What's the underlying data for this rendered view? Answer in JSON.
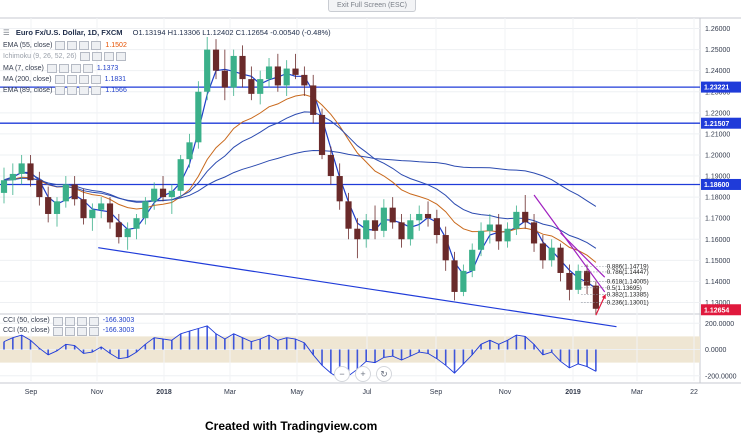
{
  "header": {
    "symbol": "Euro Fx/U.S. Dollar, 1D, FXCM",
    "ohlc": "O1.13194 H1.13306 L1.12402 C1.12654 -0.00540 (-0.48%)"
  },
  "exit_button": "Exit Full Screen (ESC)",
  "indicators": [
    {
      "name": "EMA (55, close)",
      "value": "1.1502",
      "color": "#e65100"
    },
    {
      "name": "Ichimoku (9, 26, 52, 26)",
      "value": "",
      "color": "#a0a0a0"
    },
    {
      "name": "MA (7, close)",
      "value": "1.1373",
      "color": "#1e3ec8"
    },
    {
      "name": "MA (200, close)",
      "value": "1.1831",
      "color": "#1e3ec8"
    },
    {
      "name": "EMA (89, close)",
      "value": "1.1566",
      "color": "#1e3ec8"
    }
  ],
  "cci_legend": [
    {
      "name": "CCI (50, close)",
      "value": "-166.3003"
    },
    {
      "name": "CCI (50, close)",
      "value": "-166.3003"
    }
  ],
  "zoom": {
    "minus": "−",
    "plus": "+",
    "reset": "↻"
  },
  "footer": "Created with Tradingview.com",
  "colors": {
    "bull": "#3bb08a",
    "bear": "#6a2a2a",
    "hline": "#1f3bd9",
    "channel": "#1f3bd9",
    "trend": "#a020c0",
    "arrow": "#e0193d",
    "price_badge": "#e0193d",
    "cci_line": "#1f3bd9",
    "cci_band": "#efe6d3"
  },
  "chart_data": {
    "type": "candlestick",
    "x_ticks": [
      "Sep",
      "Nov",
      "2018",
      "Mar",
      "May",
      "Jul",
      "Sep",
      "Nov",
      "2019",
      "Mar",
      "22"
    ],
    "y_ticks": [
      "1.26000",
      "1.25000",
      "1.24000",
      "1.23000",
      "1.22000",
      "1.21000",
      "1.20000",
      "1.19000",
      "1.18000",
      "1.17000",
      "1.16000",
      "1.15000",
      "1.14000",
      "1.13000"
    ],
    "ylim": [
      1.125,
      1.265
    ],
    "horizontal_levels": [
      {
        "label": "1.23221",
        "value": 1.23221
      },
      {
        "label": "1.21507",
        "value": 1.21507
      },
      {
        "label": "1.18600",
        "value": 1.186
      }
    ],
    "last_price": {
      "label": "1.12654",
      "value": 1.12654
    },
    "fibonacci": [
      {
        "label": "0.886(1.14719)",
        "value": 1.14719
      },
      {
        "label": "0.786(1.14447)",
        "value": 1.14447
      },
      {
        "label": "0.618(1.14005)",
        "value": 1.14005
      },
      {
        "label": "0.5(1.13695)",
        "value": 1.13695
      },
      {
        "label": "0.382(1.13385)",
        "value": 1.13385
      },
      {
        "label": "0.236(1.13001)",
        "value": 1.13001
      }
    ],
    "cci_ticks": [
      "200.0000",
      "0.0000",
      "-200.0000"
    ],
    "cci_ylim": [
      -240,
      240
    ],
    "ohlc_series": [
      [
        0,
        1.182,
        1.194,
        1.177,
        1.188
      ],
      [
        3,
        1.188,
        1.196,
        1.181,
        1.191
      ],
      [
        6,
        1.191,
        1.2,
        1.186,
        1.196
      ],
      [
        9,
        1.196,
        1.2,
        1.185,
        1.188
      ],
      [
        12,
        1.188,
        1.192,
        1.176,
        1.18
      ],
      [
        15,
        1.18,
        1.185,
        1.168,
        1.172
      ],
      [
        18,
        1.172,
        1.18,
        1.166,
        1.178
      ],
      [
        21,
        1.178,
        1.19,
        1.175,
        1.186
      ],
      [
        24,
        1.186,
        1.19,
        1.176,
        1.179
      ],
      [
        27,
        1.179,
        1.184,
        1.167,
        1.17
      ],
      [
        30,
        1.17,
        1.177,
        1.164,
        1.174
      ],
      [
        33,
        1.174,
        1.18,
        1.17,
        1.177
      ],
      [
        36,
        1.177,
        1.18,
        1.165,
        1.168
      ],
      [
        39,
        1.168,
        1.172,
        1.158,
        1.161
      ],
      [
        42,
        1.161,
        1.168,
        1.155,
        1.165
      ],
      [
        45,
        1.165,
        1.172,
        1.16,
        1.17
      ],
      [
        48,
        1.17,
        1.18,
        1.167,
        1.178
      ],
      [
        51,
        1.178,
        1.187,
        1.174,
        1.184
      ],
      [
        54,
        1.184,
        1.19,
        1.178,
        1.18
      ],
      [
        57,
        1.18,
        1.186,
        1.172,
        1.183
      ],
      [
        60,
        1.183,
        1.2,
        1.18,
        1.198
      ],
      [
        63,
        1.198,
        1.21,
        1.194,
        1.206
      ],
      [
        66,
        1.206,
        1.235,
        1.203,
        1.23
      ],
      [
        69,
        1.23,
        1.256,
        1.226,
        1.25
      ],
      [
        72,
        1.25,
        1.255,
        1.236,
        1.24
      ],
      [
        75,
        1.24,
        1.25,
        1.226,
        1.232
      ],
      [
        78,
        1.232,
        1.25,
        1.228,
        1.247
      ],
      [
        81,
        1.247,
        1.252,
        1.232,
        1.236
      ],
      [
        84,
        1.236,
        1.242,
        1.226,
        1.229
      ],
      [
        87,
        1.229,
        1.24,
        1.224,
        1.236
      ],
      [
        90,
        1.236,
        1.246,
        1.232,
        1.242
      ],
      [
        93,
        1.242,
        1.248,
        1.23,
        1.233
      ],
      [
        96,
        1.233,
        1.245,
        1.228,
        1.241
      ],
      [
        99,
        1.241,
        1.248,
        1.236,
        1.238
      ],
      [
        102,
        1.238,
        1.242,
        1.228,
        1.233
      ],
      [
        105,
        1.233,
        1.238,
        1.215,
        1.219
      ],
      [
        108,
        1.219,
        1.222,
        1.198,
        1.2
      ],
      [
        111,
        1.2,
        1.204,
        1.186,
        1.19
      ],
      [
        114,
        1.19,
        1.196,
        1.174,
        1.178
      ],
      [
        117,
        1.178,
        1.182,
        1.16,
        1.165
      ],
      [
        120,
        1.165,
        1.17,
        1.151,
        1.16
      ],
      [
        123,
        1.16,
        1.172,
        1.156,
        1.169
      ],
      [
        126,
        1.169,
        1.176,
        1.16,
        1.164
      ],
      [
        129,
        1.164,
        1.179,
        1.161,
        1.175
      ],
      [
        132,
        1.175,
        1.18,
        1.165,
        1.168
      ],
      [
        135,
        1.168,
        1.172,
        1.156,
        1.16
      ],
      [
        138,
        1.16,
        1.172,
        1.157,
        1.169
      ],
      [
        141,
        1.169,
        1.176,
        1.164,
        1.172
      ],
      [
        144,
        1.172,
        1.178,
        1.166,
        1.17
      ],
      [
        147,
        1.17,
        1.174,
        1.158,
        1.162
      ],
      [
        150,
        1.162,
        1.166,
        1.145,
        1.15
      ],
      [
        153,
        1.15,
        1.154,
        1.131,
        1.135
      ],
      [
        156,
        1.135,
        1.148,
        1.133,
        1.145
      ],
      [
        159,
        1.145,
        1.158,
        1.142,
        1.155
      ],
      [
        162,
        1.155,
        1.168,
        1.152,
        1.164
      ],
      [
        165,
        1.164,
        1.172,
        1.158,
        1.167
      ],
      [
        168,
        1.167,
        1.172,
        1.155,
        1.159
      ],
      [
        171,
        1.159,
        1.168,
        1.156,
        1.165
      ],
      [
        174,
        1.165,
        1.176,
        1.162,
        1.173
      ],
      [
        177,
        1.173,
        1.181,
        1.165,
        1.168
      ],
      [
        180,
        1.168,
        1.172,
        1.154,
        1.158
      ],
      [
        183,
        1.158,
        1.162,
        1.146,
        1.15
      ],
      [
        186,
        1.15,
        1.16,
        1.147,
        1.156
      ],
      [
        189,
        1.156,
        1.158,
        1.14,
        1.144
      ],
      [
        192,
        1.144,
        1.148,
        1.131,
        1.136
      ],
      [
        195,
        1.136,
        1.148,
        1.134,
        1.145
      ],
      [
        198,
        1.145,
        1.148,
        1.134,
        1.138
      ],
      [
        201,
        1.138,
        1.14,
        1.124,
        1.127
      ]
    ],
    "cci_series": [
      [
        0,
        60
      ],
      [
        3,
        90
      ],
      [
        6,
        110
      ],
      [
        9,
        70
      ],
      [
        12,
        10
      ],
      [
        15,
        -40
      ],
      [
        18,
        -10
      ],
      [
        21,
        40
      ],
      [
        24,
        30
      ],
      [
        27,
        -30
      ],
      [
        30,
        -20
      ],
      [
        33,
        20
      ],
      [
        36,
        -30
      ],
      [
        39,
        -70
      ],
      [
        42,
        -60
      ],
      [
        45,
        -20
      ],
      [
        48,
        40
      ],
      [
        51,
        90
      ],
      [
        54,
        80
      ],
      [
        57,
        70
      ],
      [
        60,
        120
      ],
      [
        63,
        140
      ],
      [
        66,
        160
      ],
      [
        69,
        180
      ],
      [
        72,
        120
      ],
      [
        75,
        80
      ],
      [
        78,
        120
      ],
      [
        81,
        90
      ],
      [
        84,
        60
      ],
      [
        87,
        80
      ],
      [
        90,
        110
      ],
      [
        93,
        70
      ],
      [
        96,
        90
      ],
      [
        99,
        80
      ],
      [
        102,
        50
      ],
      [
        105,
        -40
      ],
      [
        108,
        -120
      ],
      [
        111,
        -180
      ],
      [
        114,
        -220
      ],
      [
        117,
        -200
      ],
      [
        120,
        -150
      ],
      [
        123,
        -90
      ],
      [
        126,
        -100
      ],
      [
        129,
        -60
      ],
      [
        132,
        -50
      ],
      [
        135,
        -80
      ],
      [
        138,
        -50
      ],
      [
        141,
        -20
      ],
      [
        144,
        -30
      ],
      [
        147,
        -70
      ],
      [
        150,
        -120
      ],
      [
        153,
        -180
      ],
      [
        156,
        -110
      ],
      [
        159,
        -40
      ],
      [
        162,
        40
      ],
      [
        165,
        70
      ],
      [
        168,
        40
      ],
      [
        171,
        70
      ],
      [
        174,
        110
      ],
      [
        177,
        100
      ],
      [
        180,
        40
      ],
      [
        183,
        -40
      ],
      [
        186,
        -20
      ],
      [
        189,
        -90
      ],
      [
        192,
        -140
      ],
      [
        195,
        -110
      ],
      [
        198,
        -130
      ],
      [
        201,
        -166.3
      ]
    ]
  }
}
